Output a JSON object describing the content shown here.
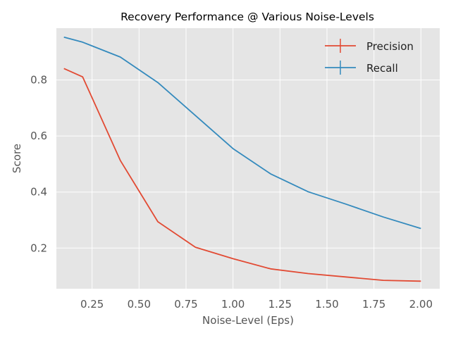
{
  "chart_data": {
    "type": "line",
    "title": "Recovery Performance @ Various Noise-Levels",
    "xlabel": "Noise-Level (Eps)",
    "ylabel": "Score",
    "xlim": [
      0.06,
      2.1
    ],
    "ylim": [
      0.055,
      0.985
    ],
    "xticks": [
      0.25,
      0.5,
      0.75,
      1.0,
      1.25,
      1.5,
      1.75,
      2.0
    ],
    "xtick_labels": [
      "0.25",
      "0.50",
      "0.75",
      "1.00",
      "1.25",
      "1.50",
      "1.75",
      "2.00"
    ],
    "yticks": [
      0.2,
      0.4,
      0.6,
      0.8
    ],
    "ytick_labels": [
      "0.2",
      "0.4",
      "0.6",
      "0.8"
    ],
    "grid": true,
    "legend_position": "top-right",
    "x": [
      0.1,
      0.2,
      0.4,
      0.6,
      0.8,
      1.0,
      1.2,
      1.4,
      1.6,
      1.8,
      2.0
    ],
    "series": [
      {
        "name": "Precision",
        "color": "#E24A33",
        "values": [
          0.841,
          0.811,
          0.513,
          0.294,
          0.203,
          0.162,
          0.126,
          0.109,
          0.097,
          0.085,
          0.082
        ]
      },
      {
        "name": "Recall",
        "color": "#348ABD",
        "values": [
          0.953,
          0.935,
          0.882,
          0.791,
          0.673,
          0.555,
          0.465,
          0.401,
          0.357,
          0.311,
          0.27
        ]
      }
    ]
  }
}
